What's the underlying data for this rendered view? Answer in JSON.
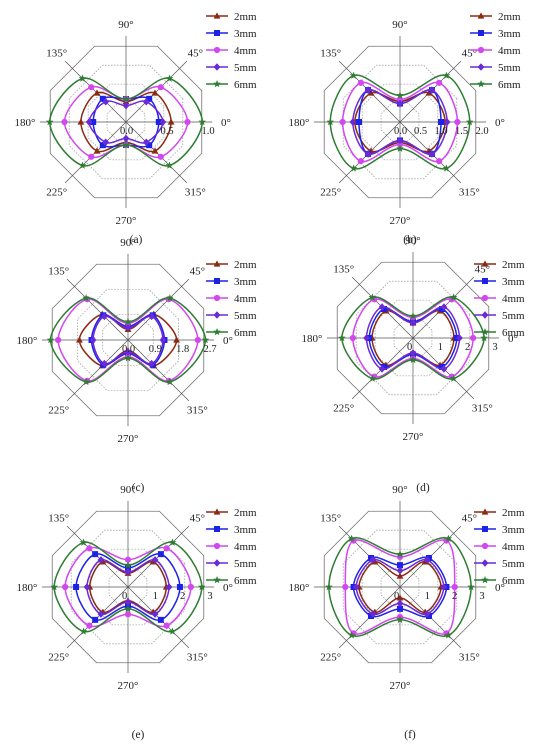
{
  "colors": {
    "2mm": "#8B2A12",
    "3mm": "#1E22E6",
    "4mm": "#D247EE",
    "5mm": "#6A2AD8",
    "6mm": "#2E7D32",
    "grid": "#8a8a8a",
    "spoke": "#555555"
  },
  "legend_labels": [
    "2mm",
    "3mm",
    "4mm",
    "5mm",
    "6mm"
  ],
  "angle_labels": [
    "0°",
    "45°",
    "90°",
    "135°",
    "180°",
    "225°",
    "270°",
    "315°"
  ],
  "chart_data": [
    {
      "type": "polar-line",
      "panel": "(a)",
      "rmax": 1.0,
      "rings": 4,
      "tick_labels": [
        "0.0",
        "0.5",
        "1.0"
      ],
      "tick_values": [
        0,
        0.5,
        1.0
      ],
      "angles_deg": [
        0,
        45,
        90,
        135,
        180,
        225,
        270,
        315
      ],
      "series": [
        {
          "name": "2mm",
          "r": [
            0.55,
            0.5,
            0.25,
            0.5,
            0.55,
            0.5,
            0.25,
            0.5
          ]
        },
        {
          "name": "3mm",
          "r": [
            0.4,
            0.4,
            0.28,
            0.4,
            0.4,
            0.4,
            0.28,
            0.4
          ]
        },
        {
          "name": "4mm",
          "r": [
            0.75,
            0.6,
            0.28,
            0.6,
            0.75,
            0.6,
            0.28,
            0.6
          ]
        },
        {
          "name": "5mm",
          "r": [
            0.45,
            0.35,
            0.2,
            0.35,
            0.45,
            0.35,
            0.2,
            0.35
          ]
        },
        {
          "name": "6mm",
          "r": [
            0.93,
            0.75,
            0.28,
            0.75,
            0.93,
            0.75,
            0.28,
            0.75
          ]
        }
      ]
    },
    {
      "type": "polar-line",
      "panel": "(b)",
      "rmax": 2.0,
      "rings": 4,
      "tick_labels": [
        "0.0",
        "0.5",
        "1.0",
        "1.5",
        "2.0"
      ],
      "tick_values": [
        0,
        0.5,
        1.0,
        1.5,
        2.0
      ],
      "angles_deg": [
        0,
        45,
        90,
        135,
        180,
        225,
        270,
        315
      ],
      "series": [
        {
          "name": "2mm",
          "r": [
            1.1,
            1.0,
            0.5,
            1.0,
            1.1,
            1.0,
            0.5,
            1.0
          ]
        },
        {
          "name": "3mm",
          "r": [
            1.0,
            1.1,
            0.45,
            1.1,
            1.0,
            1.1,
            0.45,
            1.1
          ]
        },
        {
          "name": "4mm",
          "r": [
            1.4,
            1.35,
            0.55,
            1.35,
            1.4,
            1.35,
            0.55,
            1.35
          ]
        },
        {
          "name": "5mm",
          "r": [
            1.15,
            1.1,
            0.45,
            1.1,
            1.15,
            1.1,
            0.45,
            1.1
          ]
        },
        {
          "name": "6mm",
          "r": [
            1.7,
            1.6,
            0.65,
            1.6,
            1.7,
            1.6,
            0.65,
            1.6
          ]
        }
      ]
    },
    {
      "type": "polar-line",
      "panel": "(c)",
      "rmax": 2.7,
      "rings": 3,
      "tick_labels": [
        "0.0",
        "0.9",
        "1.8",
        "2.7"
      ],
      "tick_values": [
        0,
        0.9,
        1.8,
        2.7
      ],
      "angles_deg": [
        0,
        45,
        90,
        135,
        180,
        225,
        270,
        315
      ],
      "series": [
        {
          "name": "2mm",
          "r": [
            1.6,
            1.2,
            0.35,
            1.2,
            1.6,
            1.2,
            0.35,
            1.2
          ]
        },
        {
          "name": "3mm",
          "r": [
            1.2,
            1.15,
            0.45,
            1.15,
            1.2,
            1.15,
            0.45,
            1.15
          ]
        },
        {
          "name": "4mm",
          "r": [
            2.3,
            1.9,
            0.55,
            1.9,
            2.3,
            1.9,
            0.55,
            1.9
          ]
        },
        {
          "name": "5mm",
          "r": [
            1.15,
            1.1,
            0.4,
            1.1,
            1.15,
            1.1,
            0.4,
            1.1
          ]
        },
        {
          "name": "6mm",
          "r": [
            2.55,
            1.95,
            0.6,
            1.95,
            2.55,
            1.95,
            0.6,
            1.95
          ]
        }
      ]
    },
    {
      "type": "polar-line",
      "panel": "(d)",
      "rmax": 3.0,
      "rings": 4,
      "tick_labels": [
        "0",
        "1",
        "2",
        "3"
      ],
      "tick_values": [
        0,
        1,
        2,
        3
      ],
      "angles_deg": [
        0,
        45,
        90,
        135,
        180,
        225,
        270,
        315
      ],
      "series": [
        {
          "name": "2mm",
          "r": [
            1.5,
            1.4,
            0.55,
            1.4,
            1.5,
            1.4,
            0.55,
            1.4
          ]
        },
        {
          "name": "3mm",
          "r": [
            1.6,
            1.5,
            0.6,
            1.5,
            1.6,
            1.5,
            0.6,
            1.5
          ]
        },
        {
          "name": "4mm",
          "r": [
            2.2,
            2.0,
            0.75,
            2.0,
            2.2,
            2.0,
            0.75,
            2.0
          ]
        },
        {
          "name": "5mm",
          "r": [
            1.7,
            1.6,
            0.55,
            1.6,
            1.7,
            1.6,
            0.55,
            1.6
          ]
        },
        {
          "name": "6mm",
          "r": [
            2.6,
            2.1,
            0.8,
            2.1,
            2.6,
            2.1,
            0.8,
            2.1
          ]
        }
      ]
    },
    {
      "type": "polar-line",
      "panel": "(e)",
      "rmax": 3.0,
      "rings": 4,
      "tick_labels": [
        "0",
        "1",
        "2",
        "3"
      ],
      "tick_values": [
        0,
        1,
        2,
        3
      ],
      "angles_deg": [
        0,
        45,
        90,
        135,
        180,
        225,
        270,
        315
      ],
      "series": [
        {
          "name": "2mm",
          "r": [
            1.4,
            1.3,
            0.5,
            1.3,
            1.4,
            1.3,
            0.5,
            1.3
          ]
        },
        {
          "name": "3mm",
          "r": [
            1.9,
            1.7,
            0.7,
            1.7,
            1.9,
            1.7,
            0.7,
            1.7
          ]
        },
        {
          "name": "4mm",
          "r": [
            2.3,
            2.0,
            1.0,
            2.0,
            2.3,
            2.0,
            1.0,
            2.0
          ]
        },
        {
          "name": "5mm",
          "r": [
            1.5,
            1.4,
            0.55,
            1.4,
            1.5,
            1.4,
            0.55,
            1.4
          ]
        },
        {
          "name": "6mm",
          "r": [
            2.7,
            2.3,
            0.8,
            2.3,
            2.7,
            2.3,
            0.8,
            2.3
          ]
        }
      ]
    },
    {
      "type": "polar-line",
      "panel": "(f)",
      "rmax": 3.0,
      "rings": 4,
      "tick_labels": [
        "0",
        "1",
        "2",
        "3"
      ],
      "tick_values": [
        0,
        1,
        2,
        3
      ],
      "angles_deg": [
        0,
        45,
        90,
        135,
        180,
        225,
        270,
        315
      ],
      "series": [
        {
          "name": "2mm",
          "r": [
            1.5,
            1.3,
            0.4,
            1.3,
            1.5,
            1.3,
            0.4,
            1.3
          ]
        },
        {
          "name": "3mm",
          "r": [
            1.7,
            1.5,
            0.8,
            1.5,
            1.7,
            1.5,
            0.8,
            1.5
          ]
        },
        {
          "name": "4mm",
          "r": [
            2.0,
            2.4,
            1.1,
            2.4,
            2.0,
            2.4,
            1.1,
            2.4
          ]
        },
        {
          "name": "5mm",
          "r": [
            1.6,
            1.4,
            0.6,
            1.4,
            1.6,
            1.4,
            0.6,
            1.4
          ]
        },
        {
          "name": "6mm",
          "r": [
            2.6,
            2.5,
            1.2,
            2.5,
            2.6,
            2.5,
            1.2,
            2.5
          ]
        }
      ]
    }
  ]
}
